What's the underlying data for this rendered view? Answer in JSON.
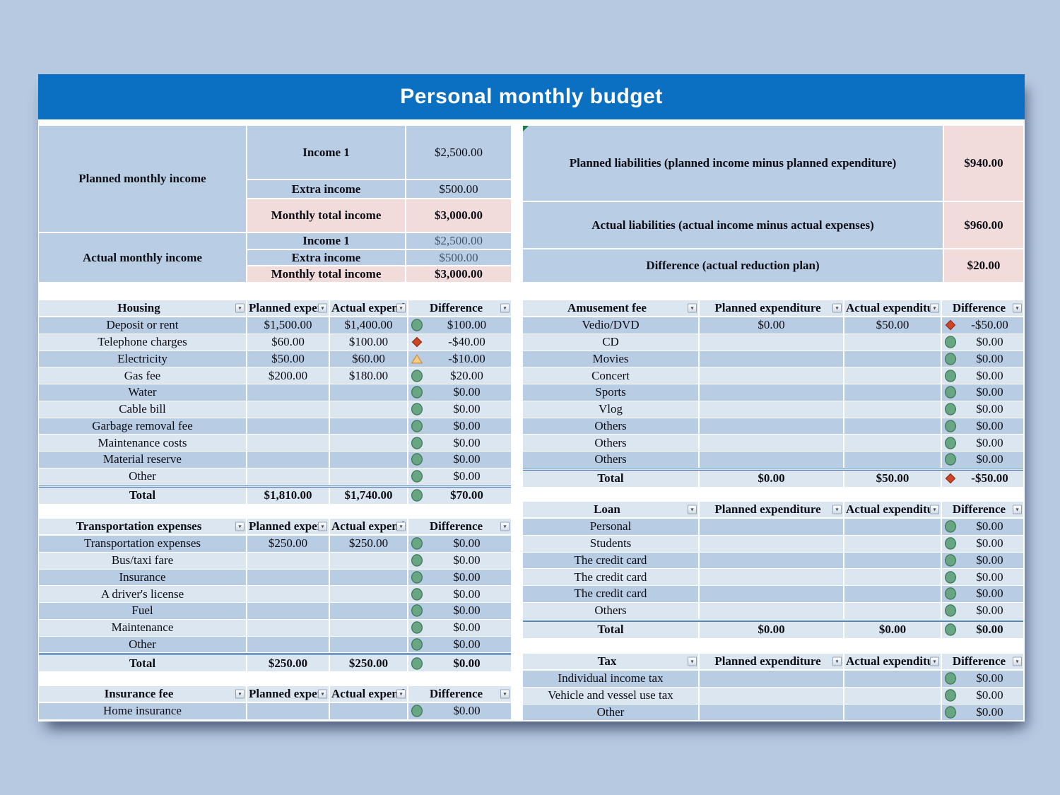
{
  "window": {
    "title": "Personal monthly budget"
  },
  "colors": {
    "page_bg": "#b7c8e1",
    "title_bar_blue": "#0b70c1",
    "row_dark_blue": "#b8cce4",
    "row_light_blue": "#dce6f1",
    "total_pink": "#f1dcdb",
    "status_good_green": "#68a683",
    "status_bad_red": "#cf4426",
    "status_warn_yellow": "#f7cd83",
    "total_border_blue": "#4f81bd"
  },
  "income": {
    "planned": {
      "label": "Planned monthly income",
      "rows": [
        {
          "name": "Income 1",
          "value": "$2,500.00"
        },
        {
          "name": "Extra income",
          "value": "$500.00"
        },
        {
          "name": "Monthly total income",
          "value": "$3,000.00"
        }
      ]
    },
    "actual": {
      "label": "Actual monthly income",
      "rows": [
        {
          "name": "Income 1",
          "value": "$2,500.00"
        },
        {
          "name": "Extra income",
          "value": "$500.00"
        },
        {
          "name": "Monthly total income",
          "value": "$3,000.00"
        }
      ]
    }
  },
  "liabilities": {
    "rows": [
      {
        "label": "Planned liabilities (planned income minus planned expenditure)",
        "value": "$940.00"
      },
      {
        "label": "Actual liabilities (actual income minus actual expenses)",
        "value": "$960.00"
      },
      {
        "label": "Difference (actual reduction plan)",
        "value": "$20.00"
      }
    ]
  },
  "tables": [
    {
      "id": "housing",
      "side": "left",
      "title": "Housing",
      "columns": {
        "planned": "Planned expenditure",
        "actual": "Actual expenditure",
        "difference": "Difference"
      },
      "rows": [
        {
          "name": "Deposit or rent",
          "planned": "$1,500.00",
          "actual": "$1,400.00",
          "icon": "circle-green",
          "diff": "$100.00"
        },
        {
          "name": "Telephone charges",
          "planned": "$60.00",
          "actual": "$100.00",
          "icon": "diamond-red",
          "diff": "-$40.00"
        },
        {
          "name": "Electricity",
          "planned": "$50.00",
          "actual": "$60.00",
          "icon": "triangle-yellow",
          "diff": "-$10.00"
        },
        {
          "name": "Gas fee",
          "planned": "$200.00",
          "actual": "$180.00",
          "icon": "circle-green",
          "diff": "$20.00"
        },
        {
          "name": "Water",
          "planned": "",
          "actual": "",
          "icon": "circle-green",
          "diff": "$0.00"
        },
        {
          "name": "Cable bill",
          "planned": "",
          "actual": "",
          "icon": "circle-green",
          "diff": "$0.00"
        },
        {
          "name": "Garbage removal fee",
          "planned": "",
          "actual": "",
          "icon": "circle-green",
          "diff": "$0.00"
        },
        {
          "name": "Maintenance costs",
          "planned": "",
          "actual": "",
          "icon": "circle-green",
          "diff": "$0.00"
        },
        {
          "name": "Material reserve",
          "planned": "",
          "actual": "",
          "icon": "circle-green",
          "diff": "$0.00"
        },
        {
          "name": "Other",
          "planned": "",
          "actual": "",
          "icon": "circle-green",
          "diff": "$0.00"
        }
      ],
      "total": {
        "name": "Total",
        "planned": "$1,810.00",
        "actual": "$1,740.00",
        "icon": "circle-green",
        "diff": "$70.00"
      }
    },
    {
      "id": "amusement",
      "side": "right",
      "title": "Amusement fee",
      "columns": {
        "planned": "Planned expenditure",
        "actual": "Actual expenditure",
        "difference": "Difference"
      },
      "rows": [
        {
          "name": "Vedio/DVD",
          "planned": "$0.00",
          "actual": "$50.00",
          "icon": "diamond-red",
          "diff": "-$50.00"
        },
        {
          "name": "CD",
          "planned": "",
          "actual": "",
          "icon": "circle-green",
          "diff": "$0.00"
        },
        {
          "name": "Movies",
          "planned": "",
          "actual": "",
          "icon": "circle-green",
          "diff": "$0.00"
        },
        {
          "name": "Concert",
          "planned": "",
          "actual": "",
          "icon": "circle-green",
          "diff": "$0.00"
        },
        {
          "name": "Sports",
          "planned": "",
          "actual": "",
          "icon": "circle-green",
          "diff": "$0.00"
        },
        {
          "name": "Vlog",
          "planned": "",
          "actual": "",
          "icon": "circle-green",
          "diff": "$0.00"
        },
        {
          "name": "Others",
          "planned": "",
          "actual": "",
          "icon": "circle-green",
          "diff": "$0.00"
        },
        {
          "name": "Others",
          "planned": "",
          "actual": "",
          "icon": "circle-green",
          "diff": "$0.00"
        },
        {
          "name": "Others",
          "planned": "",
          "actual": "",
          "icon": "circle-green",
          "diff": "$0.00"
        }
      ],
      "total": {
        "name": "Total",
        "planned": "$0.00",
        "actual": "$50.00",
        "icon": "diamond-red",
        "diff": "-$50.00"
      }
    },
    {
      "id": "transport",
      "side": "left",
      "title": "Transportation expenses",
      "columns": {
        "planned": "Planned expenditure",
        "actual": "Actual expenditure",
        "difference": "Difference"
      },
      "rows": [
        {
          "name": "Transportation expenses",
          "planned": "$250.00",
          "actual": "$250.00",
          "icon": "circle-green",
          "diff": "$0.00"
        },
        {
          "name": "Bus/taxi fare",
          "planned": "",
          "actual": "",
          "icon": "circle-green",
          "diff": "$0.00"
        },
        {
          "name": "Insurance",
          "planned": "",
          "actual": "",
          "icon": "circle-green",
          "diff": "$0.00"
        },
        {
          "name": "A driver's license",
          "planned": "",
          "actual": "",
          "icon": "circle-green",
          "diff": "$0.00"
        },
        {
          "name": "Fuel",
          "planned": "",
          "actual": "",
          "icon": "circle-green",
          "diff": "$0.00"
        },
        {
          "name": "Maintenance",
          "planned": "",
          "actual": "",
          "icon": "circle-green",
          "diff": "$0.00"
        },
        {
          "name": "Other",
          "planned": "",
          "actual": "",
          "icon": "circle-green",
          "diff": "$0.00"
        }
      ],
      "total": {
        "name": "Total",
        "planned": "$250.00",
        "actual": "$250.00",
        "icon": "circle-green",
        "diff": "$0.00"
      }
    },
    {
      "id": "loan",
      "side": "right",
      "title": "Loan",
      "columns": {
        "planned": "Planned expenditure",
        "actual": "Actual expenditure",
        "difference": "Difference"
      },
      "rows": [
        {
          "name": "Personal",
          "planned": "",
          "actual": "",
          "icon": "circle-green",
          "diff": "$0.00"
        },
        {
          "name": "Students",
          "planned": "",
          "actual": "",
          "icon": "circle-green",
          "diff": "$0.00"
        },
        {
          "name": "The credit card",
          "planned": "",
          "actual": "",
          "icon": "circle-green",
          "diff": "$0.00"
        },
        {
          "name": "The credit card",
          "planned": "",
          "actual": "",
          "icon": "circle-green",
          "diff": "$0.00"
        },
        {
          "name": "The credit card",
          "planned": "",
          "actual": "",
          "icon": "circle-green",
          "diff": "$0.00"
        },
        {
          "name": "Others",
          "planned": "",
          "actual": "",
          "icon": "circle-green",
          "diff": "$0.00"
        }
      ],
      "total": {
        "name": "Total",
        "planned": "$0.00",
        "actual": "$0.00",
        "icon": "circle-green",
        "diff": "$0.00"
      }
    },
    {
      "id": "insurance",
      "side": "left",
      "title": "Insurance fee",
      "columns": {
        "planned": "Planned expenditure",
        "actual": "Actual expenditure",
        "difference": "Difference"
      },
      "rows": [
        {
          "name": "Home insurance",
          "planned": "",
          "actual": "",
          "icon": "circle-green",
          "diff": "$0.00"
        }
      ]
    },
    {
      "id": "tax",
      "side": "right",
      "title": "Tax",
      "columns": {
        "planned": "Planned expenditure",
        "actual": "Actual expenditure",
        "difference": "Difference"
      },
      "rows": [
        {
          "name": "Individual income tax",
          "planned": "",
          "actual": "",
          "icon": "circle-green",
          "diff": "$0.00"
        },
        {
          "name": "Vehicle and vessel use tax",
          "planned": "",
          "actual": "",
          "icon": "circle-green",
          "diff": "$0.00"
        },
        {
          "name": "Other",
          "planned": "",
          "actual": "",
          "icon": "circle-green",
          "diff": "$0.00"
        }
      ]
    }
  ]
}
